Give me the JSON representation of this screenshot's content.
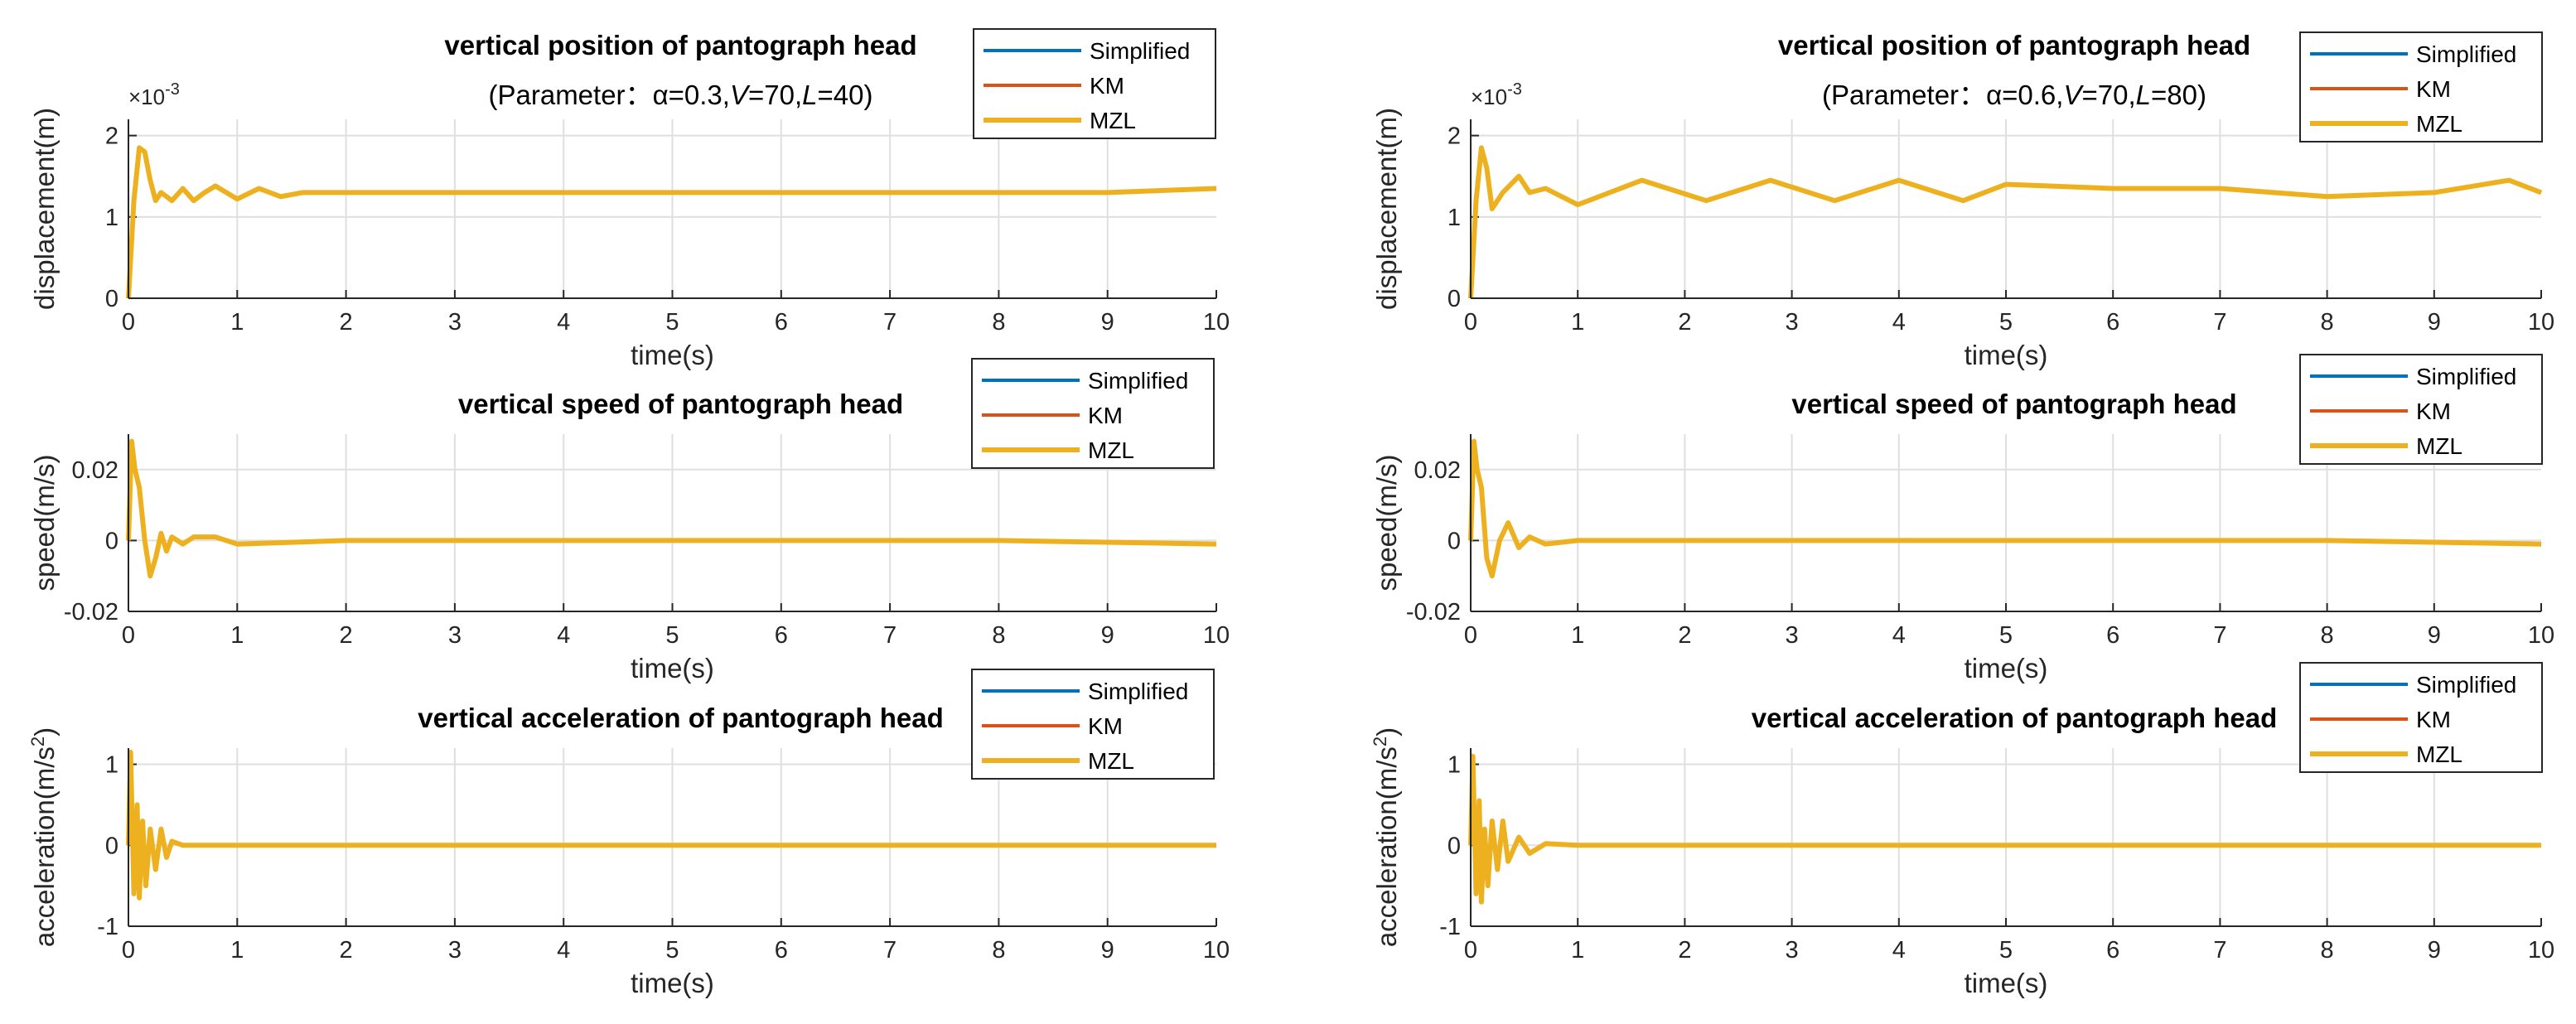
{
  "figure": {
    "panels": [
      {
        "id": "left",
        "subtitle_prefix": "(Parameter：",
        "params": [
          {
            "symbol": "α",
            "value": "0.3",
            "italic": false
          },
          {
            "symbol": "V",
            "value": "70",
            "italic": true
          },
          {
            "symbol": "L",
            "value": "40",
            "italic": true
          }
        ],
        "subtitle_suffix": ")"
      },
      {
        "id": "right",
        "subtitle_prefix": "(Parameter：",
        "params": [
          {
            "symbol": "α",
            "value": "0.6",
            "italic": false
          },
          {
            "symbol": "V",
            "value": "70",
            "italic": true
          },
          {
            "symbol": "L",
            "value": "80",
            "italic": true
          }
        ],
        "subtitle_suffix": ")"
      }
    ],
    "rows": [
      {
        "title": "vertical position of pantograph head",
        "ylabel": "displacement(m)",
        "xlabel": "time(s)",
        "exponent_label": "×10",
        "exponent": "-3",
        "yticks": [
          "0",
          "1",
          "2"
        ]
      },
      {
        "title": "vertical speed of pantograph head",
        "ylabel": "speed(m/s)",
        "xlabel": "time(s)",
        "yticks": [
          "-0.02",
          "0",
          "0.02"
        ]
      },
      {
        "title": "vertical acceleration of pantograph head",
        "ylabel": "acceleration(m/s",
        "ylabel_sup": "2",
        "ylabel_close": ")",
        "xlabel": "time(s)",
        "yticks": [
          "-1",
          "0",
          "1"
        ]
      }
    ],
    "xticks": [
      "0",
      "1",
      "2",
      "3",
      "4",
      "5",
      "6",
      "7",
      "8",
      "9",
      "10"
    ],
    "legend": [
      "Simplified",
      "KM",
      "MZL"
    ],
    "colors": {
      "Simplified": "#0072BD",
      "KM": "#D95319",
      "MZL": "#EDB120",
      "grid": "#dfdfdf",
      "axis": "#262626"
    }
  },
  "chart_data": [
    {
      "type": "line",
      "panel": "left",
      "title": "vertical position of pantograph head",
      "xlabel": "time(s)",
      "ylabel": "displacement(m)",
      "y_scale_label": "×10^-3",
      "xlim": [
        0,
        10
      ],
      "ylim": [
        0,
        2.2
      ],
      "grid": true,
      "legend_position": "top-right",
      "x": [
        0,
        0.05,
        0.1,
        0.15,
        0.2,
        0.25,
        0.3,
        0.4,
        0.5,
        0.6,
        0.7,
        0.8,
        1.0,
        1.2,
        1.4,
        1.6,
        2.0,
        3.0,
        4.0,
        5.0,
        6.0,
        7.0,
        8.0,
        9.0,
        10.0
      ],
      "series": [
        {
          "name": "Simplified",
          "values": [
            0,
            1.2,
            1.85,
            1.8,
            1.45,
            1.2,
            1.3,
            1.2,
            1.35,
            1.2,
            1.3,
            1.38,
            1.22,
            1.35,
            1.25,
            1.3,
            1.3,
            1.3,
            1.3,
            1.3,
            1.3,
            1.3,
            1.3,
            1.3,
            1.35
          ]
        },
        {
          "name": "KM",
          "values": [
            0,
            1.2,
            1.85,
            1.8,
            1.45,
            1.2,
            1.3,
            1.2,
            1.35,
            1.2,
            1.3,
            1.38,
            1.22,
            1.35,
            1.25,
            1.3,
            1.3,
            1.3,
            1.3,
            1.3,
            1.3,
            1.3,
            1.3,
            1.3,
            1.35
          ]
        },
        {
          "name": "MZL",
          "values": [
            0,
            1.2,
            1.85,
            1.8,
            1.45,
            1.2,
            1.3,
            1.2,
            1.35,
            1.2,
            1.3,
            1.38,
            1.22,
            1.35,
            1.25,
            1.3,
            1.3,
            1.3,
            1.3,
            1.3,
            1.3,
            1.3,
            1.3,
            1.3,
            1.35
          ]
        }
      ]
    },
    {
      "type": "line",
      "panel": "left",
      "title": "vertical speed of pantograph head",
      "xlabel": "time(s)",
      "ylabel": "speed(m/s)",
      "xlim": [
        0,
        10
      ],
      "ylim": [
        -0.02,
        0.03
      ],
      "grid": true,
      "legend_position": "top-right",
      "x": [
        0,
        0.03,
        0.06,
        0.1,
        0.15,
        0.2,
        0.25,
        0.3,
        0.35,
        0.4,
        0.5,
        0.6,
        0.8,
        1.0,
        2.0,
        4.0,
        6.0,
        8.0,
        10.0
      ],
      "series": [
        {
          "name": "Simplified",
          "values": [
            0,
            0.028,
            0.02,
            0.015,
            0.0,
            -0.01,
            -0.005,
            0.002,
            -0.003,
            0.001,
            -0.001,
            0.001,
            0.001,
            -0.001,
            0.0,
            0.0,
            0.0,
            0.0,
            -0.001
          ]
        },
        {
          "name": "KM",
          "values": [
            0,
            0.028,
            0.02,
            0.015,
            0.0,
            -0.01,
            -0.005,
            0.002,
            -0.003,
            0.001,
            -0.001,
            0.001,
            0.001,
            -0.001,
            0.0,
            0.0,
            0.0,
            0.0,
            -0.001
          ]
        },
        {
          "name": "MZL",
          "values": [
            0,
            0.028,
            0.02,
            0.015,
            0.0,
            -0.01,
            -0.005,
            0.002,
            -0.003,
            0.001,
            -0.001,
            0.001,
            0.001,
            -0.001,
            0.0,
            0.0,
            0.0,
            0.0,
            -0.001
          ]
        }
      ]
    },
    {
      "type": "line",
      "panel": "left",
      "title": "vertical acceleration of pantograph head",
      "xlabel": "time(s)",
      "ylabel": "acceleration(m/s^2)",
      "xlim": [
        0,
        10
      ],
      "ylim": [
        -1,
        1.2
      ],
      "grid": true,
      "legend_position": "top-right",
      "x": [
        0,
        0.02,
        0.05,
        0.08,
        0.1,
        0.13,
        0.16,
        0.2,
        0.25,
        0.3,
        0.35,
        0.4,
        0.5,
        1.0,
        2.0,
        4.0,
        6.0,
        8.0,
        10.0
      ],
      "series": [
        {
          "name": "Simplified",
          "values": [
            0,
            1.15,
            -0.6,
            0.5,
            -0.65,
            0.3,
            -0.5,
            0.2,
            -0.3,
            0.2,
            -0.15,
            0.05,
            0.0,
            0.0,
            0.0,
            0.0,
            0.0,
            0.0,
            0.0
          ]
        },
        {
          "name": "KM",
          "values": [
            0,
            1.15,
            -0.6,
            0.5,
            -0.65,
            0.3,
            -0.5,
            0.2,
            -0.3,
            0.2,
            -0.15,
            0.05,
            0.0,
            0.0,
            0.0,
            0.0,
            0.0,
            0.0,
            0.0
          ]
        },
        {
          "name": "MZL",
          "values": [
            0,
            1.15,
            -0.6,
            0.5,
            -0.65,
            0.3,
            -0.5,
            0.2,
            -0.3,
            0.2,
            -0.15,
            0.05,
            0.0,
            0.0,
            0.0,
            0.0,
            0.0,
            0.0,
            0.0
          ]
        }
      ]
    },
    {
      "type": "line",
      "panel": "right",
      "title": "vertical position of pantograph head",
      "xlabel": "time(s)",
      "ylabel": "displacement(m)",
      "y_scale_label": "×10^-3",
      "xlim": [
        0,
        10
      ],
      "ylim": [
        0,
        2.2
      ],
      "grid": true,
      "legend_position": "top-right",
      "x": [
        0,
        0.05,
        0.1,
        0.15,
        0.2,
        0.3,
        0.45,
        0.55,
        0.7,
        1.0,
        1.6,
        2.2,
        2.8,
        3.4,
        4.0,
        4.6,
        5.0,
        6.0,
        7.0,
        8.0,
        9.0,
        9.7,
        10.0
      ],
      "series": [
        {
          "name": "Simplified",
          "values": [
            0,
            1.2,
            1.85,
            1.6,
            1.1,
            1.3,
            1.5,
            1.3,
            1.35,
            1.15,
            1.45,
            1.2,
            1.45,
            1.2,
            1.45,
            1.2,
            1.4,
            1.35,
            1.35,
            1.25,
            1.3,
            1.45,
            1.3
          ]
        },
        {
          "name": "KM",
          "values": [
            0,
            1.2,
            1.85,
            1.6,
            1.1,
            1.3,
            1.5,
            1.3,
            1.35,
            1.15,
            1.45,
            1.2,
            1.45,
            1.2,
            1.45,
            1.2,
            1.4,
            1.35,
            1.35,
            1.25,
            1.3,
            1.45,
            1.3
          ]
        },
        {
          "name": "MZL",
          "values": [
            0,
            1.2,
            1.85,
            1.6,
            1.1,
            1.3,
            1.5,
            1.3,
            1.35,
            1.15,
            1.45,
            1.2,
            1.45,
            1.2,
            1.45,
            1.2,
            1.4,
            1.35,
            1.35,
            1.25,
            1.3,
            1.45,
            1.3
          ]
        }
      ]
    },
    {
      "type": "line",
      "panel": "right",
      "title": "vertical speed of pantograph head",
      "xlabel": "time(s)",
      "ylabel": "speed(m/s)",
      "xlim": [
        0,
        10
      ],
      "ylim": [
        -0.02,
        0.03
      ],
      "grid": true,
      "legend_position": "top-right",
      "x": [
        0,
        0.03,
        0.06,
        0.1,
        0.15,
        0.2,
        0.27,
        0.35,
        0.45,
        0.55,
        0.7,
        1.0,
        2.0,
        4.0,
        6.0,
        8.0,
        10.0
      ],
      "series": [
        {
          "name": "Simplified",
          "values": [
            0,
            0.028,
            0.02,
            0.015,
            -0.005,
            -0.01,
            0.0,
            0.005,
            -0.002,
            0.001,
            -0.001,
            0.0,
            0.0,
            0.0,
            0.0,
            0.0,
            -0.001
          ]
        },
        {
          "name": "KM",
          "values": [
            0,
            0.028,
            0.02,
            0.015,
            -0.005,
            -0.01,
            0.0,
            0.005,
            -0.002,
            0.001,
            -0.001,
            0.0,
            0.0,
            0.0,
            0.0,
            0.0,
            -0.001
          ]
        },
        {
          "name": "MZL",
          "values": [
            0,
            0.028,
            0.02,
            0.015,
            -0.005,
            -0.01,
            0.0,
            0.005,
            -0.002,
            0.001,
            -0.001,
            0.0,
            0.0,
            0.0,
            0.0,
            0.0,
            -0.001
          ]
        }
      ]
    },
    {
      "type": "line",
      "panel": "right",
      "title": "vertical acceleration of pantograph head",
      "xlabel": "time(s)",
      "ylabel": "acceleration(m/s^2)",
      "xlim": [
        0,
        10
      ],
      "ylim": [
        -1,
        1.2
      ],
      "grid": true,
      "legend_position": "top-right",
      "x": [
        0,
        0.02,
        0.05,
        0.08,
        0.1,
        0.13,
        0.16,
        0.2,
        0.25,
        0.3,
        0.35,
        0.45,
        0.55,
        0.7,
        1.0,
        2.0,
        4.0,
        6.0,
        8.0,
        10.0
      ],
      "series": [
        {
          "name": "Simplified",
          "values": [
            0,
            1.1,
            -0.6,
            0.55,
            -0.7,
            0.2,
            -0.5,
            0.3,
            -0.3,
            0.3,
            -0.2,
            0.1,
            -0.1,
            0.02,
            0.0,
            0.0,
            0.0,
            0.0,
            0.0,
            0.0
          ]
        },
        {
          "name": "KM",
          "values": [
            0,
            1.1,
            -0.6,
            0.55,
            -0.7,
            0.2,
            -0.5,
            0.3,
            -0.3,
            0.3,
            -0.2,
            0.1,
            -0.1,
            0.02,
            0.0,
            0.0,
            0.0,
            0.0,
            0.0,
            0.0
          ]
        },
        {
          "name": "MZL",
          "values": [
            0,
            1.1,
            -0.6,
            0.55,
            -0.7,
            0.2,
            -0.5,
            0.3,
            -0.3,
            0.3,
            -0.2,
            0.1,
            -0.1,
            0.02,
            0.0,
            0.0,
            0.0,
            0.0,
            0.0,
            0.0
          ]
        }
      ]
    }
  ]
}
